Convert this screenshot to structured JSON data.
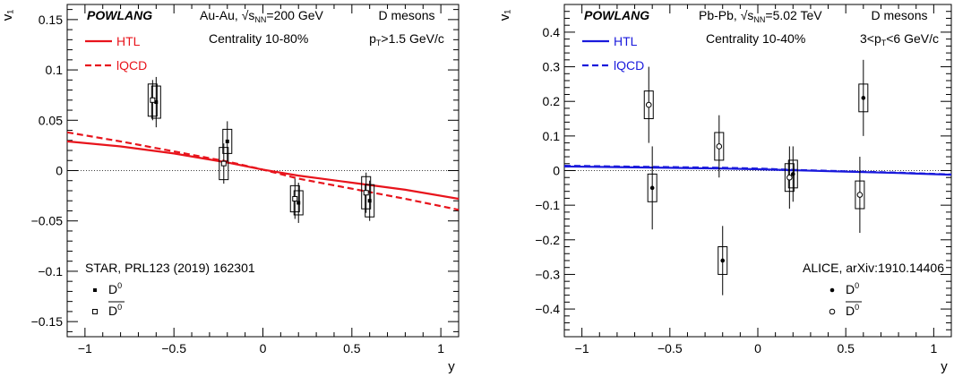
{
  "chart_data": [
    {
      "type": "scatter",
      "panel": "left",
      "xlabel": "y",
      "ylabel": "v₁",
      "xlim": [
        -1.1,
        1.1
      ],
      "ylim": [
        -0.165,
        0.165
      ],
      "x_ticks": [
        -1,
        -0.5,
        0,
        0.5,
        1
      ],
      "x_tick_labels": [
        "−1",
        "−0.5",
        "0",
        "0.5",
        "1"
      ],
      "y_ticks": [
        -0.15,
        -0.1,
        -0.05,
        0,
        0.05,
        0.1,
        0.15
      ],
      "y_tick_labels": [
        "−0.15",
        "−0.1",
        "−0.05",
        "0",
        "0.05",
        "0.1",
        "0.15"
      ],
      "annotations": {
        "model": "POWLANG",
        "system_prefix": "Au-Au, ",
        "system_sqrt": "s",
        "system_sub": "NN",
        "system_suffix": "=200 GeV",
        "centrality": "Centrality 10-80%",
        "particle": "D mesons",
        "pt_prefix": "p",
        "pt_sub": "T",
        "pt_suffix": ">1.5 GeV/c",
        "experiment": "STAR, PRL123 (2019) 162301"
      },
      "legend": {
        "htl": "HTL",
        "lqcd": "lQCD",
        "d0": "D",
        "d0_sup": "0",
        "d0bar": "D",
        "d0bar_sup": "0"
      },
      "colors": {
        "model": "#e8141c"
      },
      "series": [
        {
          "name": "HTL",
          "kind": "line",
          "style": "solid",
          "x": [
            -1.1,
            -0.8,
            -0.5,
            -0.2,
            0,
            0.2,
            0.5,
            0.8,
            1.1
          ],
          "y": [
            0.029,
            0.024,
            0.017,
            0.008,
            0.001,
            -0.005,
            -0.012,
            -0.019,
            -0.028
          ]
        },
        {
          "name": "lQCD",
          "kind": "line",
          "style": "dashed",
          "x": [
            -1.1,
            -0.8,
            -0.5,
            -0.2,
            0,
            0.2,
            0.5,
            0.8,
            1.1
          ],
          "y": [
            0.038,
            0.029,
            0.019,
            0.009,
            0.001,
            -0.008,
            -0.018,
            -0.028,
            -0.039
          ]
        },
        {
          "name": "D0",
          "kind": "points",
          "marker": "filled-square",
          "points": [
            {
              "x": -0.6,
              "y": 0.068,
              "err": 0.025,
              "sys": 0.016
            },
            {
              "x": -0.2,
              "y": 0.029,
              "err": 0.02,
              "sys": 0.012
            },
            {
              "x": 0.2,
              "y": -0.032,
              "err": 0.02,
              "sys": 0.012
            },
            {
              "x": 0.6,
              "y": -0.03,
              "err": 0.02,
              "sys": 0.016
            }
          ]
        },
        {
          "name": "anti-D0",
          "kind": "points",
          "marker": "open-square",
          "points": [
            {
              "x": -0.62,
              "y": 0.07,
              "err": 0.02,
              "sys": 0.016
            },
            {
              "x": -0.22,
              "y": 0.007,
              "err": 0.02,
              "sys": 0.016
            },
            {
              "x": 0.18,
              "y": -0.028,
              "err": 0.02,
              "sys": 0.013
            },
            {
              "x": 0.58,
              "y": -0.022,
              "err": 0.02,
              "sys": 0.016
            }
          ]
        }
      ]
    },
    {
      "type": "scatter",
      "panel": "right",
      "xlabel": "y",
      "ylabel": "v₁",
      "xlim": [
        -1.1,
        1.1
      ],
      "ylim": [
        -0.48,
        0.48
      ],
      "x_ticks": [
        -1,
        -0.5,
        0,
        0.5,
        1
      ],
      "x_tick_labels": [
        "−1",
        "−0.5",
        "0",
        "0.5",
        "1"
      ],
      "y_ticks": [
        -0.4,
        -0.3,
        -0.2,
        -0.1,
        0,
        0.1,
        0.2,
        0.3,
        0.4
      ],
      "y_tick_labels": [
        "−0.4",
        "−0.3",
        "−0.2",
        "−0.1",
        "0",
        "0.1",
        "0.2",
        "0.3",
        "0.4"
      ],
      "annotations": {
        "model": "POWLANG",
        "system_prefix": "Pb-Pb, ",
        "system_sqrt": "s",
        "system_sub": "NN",
        "system_suffix": "=5.02 TeV",
        "centrality": "Centrality 10-40%",
        "particle": "D mesons",
        "pt_prefix": "3<p",
        "pt_sub": "T",
        "pt_suffix": "<6 GeV/c",
        "experiment": "ALICE, arXiv:1910.14406"
      },
      "legend": {
        "htl": "HTL",
        "lqcd": "lQCD",
        "d0": "D",
        "d0_sup": "0",
        "d0bar": "D",
        "d0bar_sup": "0"
      },
      "colors": {
        "model": "#1a1adc"
      },
      "series": [
        {
          "name": "HTL",
          "kind": "line",
          "style": "solid",
          "x": [
            -1.1,
            -0.8,
            -0.5,
            -0.2,
            0,
            0.2,
            0.5,
            0.8,
            1.1
          ],
          "y": [
            0.012,
            0.01,
            0.008,
            0.006,
            0.004,
            0.001,
            -0.003,
            -0.007,
            -0.012
          ]
        },
        {
          "name": "lQCD",
          "kind": "line",
          "style": "dashed",
          "x": [
            -1.1,
            -0.8,
            -0.5,
            -0.2,
            0,
            0.2,
            0.5,
            0.8,
            1.1
          ],
          "y": [
            0.014,
            0.012,
            0.01,
            0.008,
            0.006,
            0.002,
            -0.002,
            -0.006,
            -0.011
          ]
        },
        {
          "name": "D0",
          "kind": "points",
          "marker": "filled-circle",
          "points": [
            {
              "x": -0.6,
              "y": -0.05,
              "err": 0.12,
              "sys": 0.04
            },
            {
              "x": -0.2,
              "y": -0.26,
              "err": 0.1,
              "sys": 0.04
            },
            {
              "x": 0.2,
              "y": -0.01,
              "err": 0.08,
              "sys": 0.04
            },
            {
              "x": 0.6,
              "y": 0.21,
              "err": 0.11,
              "sys": 0.04
            }
          ]
        },
        {
          "name": "anti-D0",
          "kind": "points",
          "marker": "open-circle",
          "points": [
            {
              "x": -0.62,
              "y": 0.19,
              "err": 0.11,
              "sys": 0.04
            },
            {
              "x": -0.22,
              "y": 0.07,
              "err": 0.09,
              "sys": 0.04
            },
            {
              "x": 0.18,
              "y": -0.02,
              "err": 0.09,
              "sys": 0.04
            },
            {
              "x": 0.58,
              "y": -0.07,
              "err": 0.11,
              "sys": 0.04
            }
          ]
        }
      ]
    }
  ]
}
